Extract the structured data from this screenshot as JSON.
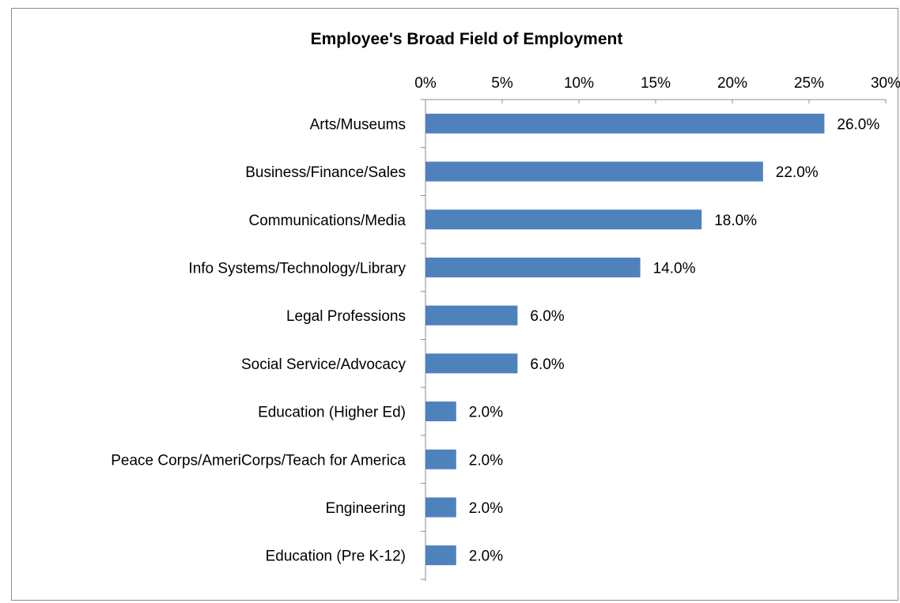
{
  "chart_data": {
    "type": "bar",
    "orientation": "horizontal",
    "title": "Employee's Broad Field of Employment",
    "xlabel": "",
    "ylabel": "",
    "axis_position": "top",
    "xlim": [
      0,
      30
    ],
    "xticks": [
      "0%",
      "5%",
      "10%",
      "15%",
      "20%",
      "25%",
      "30%"
    ],
    "xtick_values": [
      0,
      5,
      10,
      15,
      20,
      25,
      30
    ],
    "grid": false,
    "legend": "none",
    "bar_color": "#4f81bd",
    "categories": [
      "Arts/Museums",
      "Business/Finance/Sales",
      "Communications/Media",
      "Info Systems/Technology/Library",
      "Legal Professions",
      "Social Service/Advocacy",
      "Education (Higher Ed)",
      "Peace Corps/AmeriCorps/Teach for America",
      "Engineering",
      "Education (Pre K-12)"
    ],
    "values": [
      26.0,
      22.0,
      18.0,
      14.0,
      6.0,
      6.0,
      2.0,
      2.0,
      2.0,
      2.0
    ],
    "data_labels": [
      "26.0%",
      "22.0%",
      "18.0%",
      "14.0%",
      "6.0%",
      "6.0%",
      "2.0%",
      "2.0%",
      "2.0%",
      "2.0%"
    ]
  }
}
